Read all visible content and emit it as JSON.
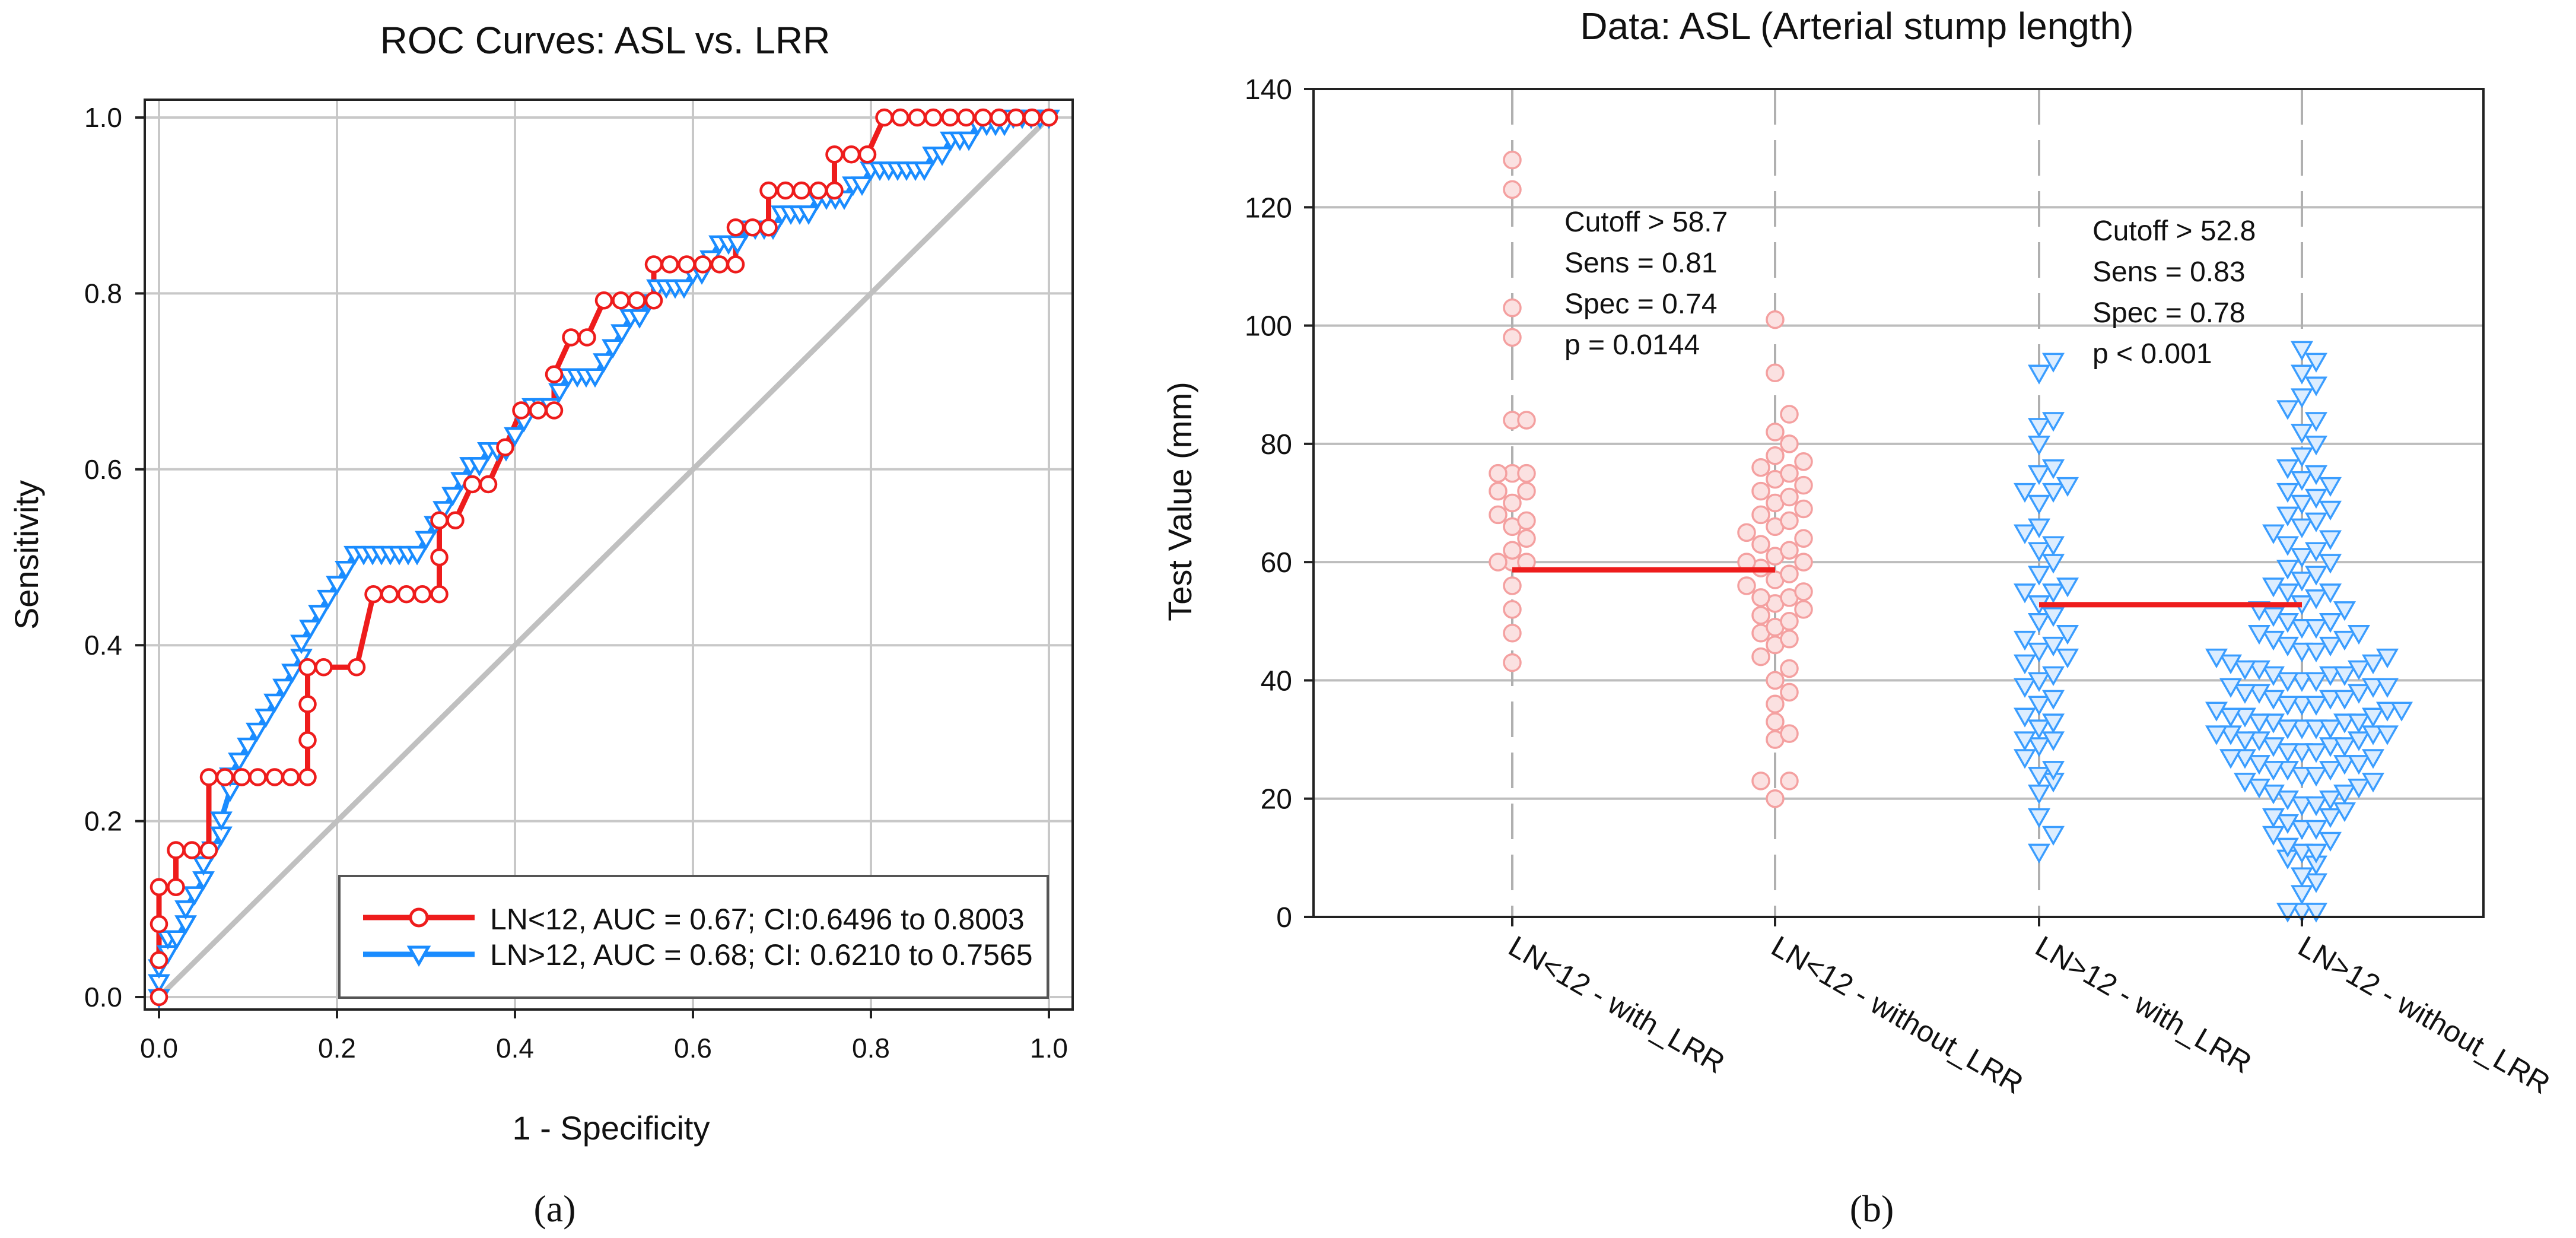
{
  "chart_data": [
    {
      "type": "line",
      "title": "ROC Curves: ASL vs. LRR",
      "xlabel": "1 - Specificity",
      "ylabel": "Sensitivity",
      "xlim": [
        0,
        1
      ],
      "ylim": [
        0,
        1
      ],
      "xticks": [
        "0.0",
        "0.2",
        "0.4",
        "0.6",
        "0.8",
        "1.0"
      ],
      "yticks": [
        "0.0",
        "0.2",
        "0.4",
        "0.6",
        "0.8",
        "1.0"
      ],
      "grid": true,
      "legend_position": "bottom-right",
      "series": [
        {
          "name": "LN<12, AUC = 0.67; CI:0.6496 to 0.8003",
          "color": "#ee1c1c",
          "marker": "circle",
          "points": [
            [
              0,
              0
            ],
            [
              0,
              0.042
            ],
            [
              0,
              0.083
            ],
            [
              0,
              0.125
            ],
            [
              0.019,
              0.125
            ],
            [
              0.019,
              0.167
            ],
            [
              0.037,
              0.167
            ],
            [
              0.056,
              0.167
            ],
            [
              0.056,
              0.25
            ],
            [
              0.074,
              0.25
            ],
            [
              0.093,
              0.25
            ],
            [
              0.111,
              0.25
            ],
            [
              0.13,
              0.25
            ],
            [
              0.148,
              0.25
            ],
            [
              0.167,
              0.25
            ],
            [
              0.167,
              0.292
            ],
            [
              0.167,
              0.333
            ],
            [
              0.167,
              0.375
            ],
            [
              0.185,
              0.375
            ],
            [
              0.222,
              0.375
            ],
            [
              0.241,
              0.458
            ],
            [
              0.259,
              0.458
            ],
            [
              0.278,
              0.458
            ],
            [
              0.296,
              0.458
            ],
            [
              0.315,
              0.458
            ],
            [
              0.315,
              0.5
            ],
            [
              0.315,
              0.542
            ],
            [
              0.333,
              0.542
            ],
            [
              0.352,
              0.583
            ],
            [
              0.37,
              0.583
            ],
            [
              0.389,
              0.625
            ],
            [
              0.407,
              0.667
            ],
            [
              0.426,
              0.667
            ],
            [
              0.444,
              0.667
            ],
            [
              0.444,
              0.708
            ],
            [
              0.463,
              0.75
            ],
            [
              0.481,
              0.75
            ],
            [
              0.5,
              0.792
            ],
            [
              0.519,
              0.792
            ],
            [
              0.537,
              0.792
            ],
            [
              0.556,
              0.792
            ],
            [
              0.556,
              0.833
            ],
            [
              0.574,
              0.833
            ],
            [
              0.593,
              0.833
            ],
            [
              0.611,
              0.833
            ],
            [
              0.63,
              0.833
            ],
            [
              0.648,
              0.833
            ],
            [
              0.648,
              0.875
            ],
            [
              0.667,
              0.875
            ],
            [
              0.685,
              0.875
            ],
            [
              0.685,
              0.917
            ],
            [
              0.704,
              0.917
            ],
            [
              0.722,
              0.917
            ],
            [
              0.741,
              0.917
            ],
            [
              0.759,
              0.917
            ],
            [
              0.759,
              0.958
            ],
            [
              0.778,
              0.958
            ],
            [
              0.796,
              0.958
            ],
            [
              0.815,
              1
            ],
            [
              0.833,
              1
            ],
            [
              0.852,
              1
            ],
            [
              0.87,
              1
            ],
            [
              0.889,
              1
            ],
            [
              0.907,
              1
            ],
            [
              0.926,
              1
            ],
            [
              0.944,
              1
            ],
            [
              0.963,
              1
            ],
            [
              0.981,
              1
            ],
            [
              1,
              1
            ]
          ]
        },
        {
          "name": "LN>12, AUC = 0.68; CI: 0.6210 to 0.7565",
          "color": "#1a8cff",
          "marker": "triangle-down",
          "points": [
            [
              0,
              0
            ],
            [
              0,
              0.017
            ],
            [
              0,
              0.034
            ],
            [
              0.01,
              0.05
            ],
            [
              0.01,
              0.067
            ],
            [
              0.02,
              0.067
            ],
            [
              0.03,
              0.084
            ],
            [
              0.03,
              0.101
            ],
            [
              0.04,
              0.117
            ],
            [
              0.05,
              0.134
            ],
            [
              0.05,
              0.151
            ],
            [
              0.06,
              0.168
            ],
            [
              0.07,
              0.185
            ],
            [
              0.07,
              0.202
            ],
            [
              0.08,
              0.235
            ],
            [
              0.08,
              0.252
            ],
            [
              0.09,
              0.269
            ],
            [
              0.1,
              0.286
            ],
            [
              0.11,
              0.303
            ],
            [
              0.12,
              0.319
            ],
            [
              0.13,
              0.336
            ],
            [
              0.14,
              0.353
            ],
            [
              0.15,
              0.37
            ],
            [
              0.16,
              0.387
            ],
            [
              0.16,
              0.403
            ],
            [
              0.17,
              0.42
            ],
            [
              0.18,
              0.437
            ],
            [
              0.19,
              0.454
            ],
            [
              0.2,
              0.47
            ],
            [
              0.21,
              0.487
            ],
            [
              0.22,
              0.504
            ],
            [
              0.23,
              0.504
            ],
            [
              0.24,
              0.504
            ],
            [
              0.25,
              0.504
            ],
            [
              0.26,
              0.504
            ],
            [
              0.27,
              0.504
            ],
            [
              0.28,
              0.504
            ],
            [
              0.29,
              0.504
            ],
            [
              0.3,
              0.521
            ],
            [
              0.31,
              0.538
            ],
            [
              0.32,
              0.555
            ],
            [
              0.33,
              0.571
            ],
            [
              0.34,
              0.588
            ],
            [
              0.35,
              0.605
            ],
            [
              0.36,
              0.605
            ],
            [
              0.37,
              0.622
            ],
            [
              0.38,
              0.622
            ],
            [
              0.39,
              0.622
            ],
            [
              0.4,
              0.639
            ],
            [
              0.41,
              0.655
            ],
            [
              0.42,
              0.672
            ],
            [
              0.43,
              0.672
            ],
            [
              0.44,
              0.672
            ],
            [
              0.45,
              0.689
            ],
            [
              0.46,
              0.706
            ],
            [
              0.47,
              0.706
            ],
            [
              0.48,
              0.706
            ],
            [
              0.49,
              0.706
            ],
            [
              0.5,
              0.723
            ],
            [
              0.51,
              0.739
            ],
            [
              0.52,
              0.756
            ],
            [
              0.53,
              0.773
            ],
            [
              0.54,
              0.773
            ],
            [
              0.55,
              0.79
            ],
            [
              0.56,
              0.807
            ],
            [
              0.57,
              0.807
            ],
            [
              0.58,
              0.807
            ],
            [
              0.59,
              0.807
            ],
            [
              0.6,
              0.823
            ],
            [
              0.61,
              0.823
            ],
            [
              0.62,
              0.84
            ],
            [
              0.63,
              0.857
            ],
            [
              0.64,
              0.857
            ],
            [
              0.65,
              0.857
            ],
            [
              0.66,
              0.874
            ],
            [
              0.67,
              0.874
            ],
            [
              0.68,
              0.874
            ],
            [
              0.69,
              0.874
            ],
            [
              0.7,
              0.891
            ],
            [
              0.71,
              0.891
            ],
            [
              0.72,
              0.891
            ],
            [
              0.73,
              0.891
            ],
            [
              0.74,
              0.908
            ],
            [
              0.75,
              0.908
            ],
            [
              0.76,
              0.908
            ],
            [
              0.77,
              0.908
            ],
            [
              0.78,
              0.924
            ],
            [
              0.79,
              0.924
            ],
            [
              0.8,
              0.941
            ],
            [
              0.81,
              0.941
            ],
            [
              0.82,
              0.941
            ],
            [
              0.83,
              0.941
            ],
            [
              0.84,
              0.941
            ],
            [
              0.85,
              0.941
            ],
            [
              0.86,
              0.941
            ],
            [
              0.87,
              0.958
            ],
            [
              0.88,
              0.958
            ],
            [
              0.89,
              0.975
            ],
            [
              0.9,
              0.975
            ],
            [
              0.91,
              0.975
            ],
            [
              0.92,
              0.992
            ],
            [
              0.93,
              0.992
            ],
            [
              0.94,
              0.992
            ],
            [
              0.95,
              0.992
            ],
            [
              0.96,
              1
            ],
            [
              0.97,
              1
            ],
            [
              0.98,
              1
            ],
            [
              0.99,
              1
            ],
            [
              1,
              1
            ]
          ]
        },
        {
          "name": "reference diagonal",
          "color": "#c0c0c0",
          "marker": "none",
          "points": [
            [
              0,
              0
            ],
            [
              1,
              1
            ]
          ]
        }
      ]
    },
    {
      "type": "scatter",
      "title": "Data: ASL (Arterial stump length)",
      "xlabel": "",
      "ylabel": "Test Value (mm)",
      "ylim": [
        0,
        140
      ],
      "yticks": [
        "0",
        "20",
        "40",
        "60",
        "80",
        "100",
        "120",
        "140"
      ],
      "grid": true,
      "categories": [
        "LN<12 - with_LRR",
        "LN<12 - without_LRR",
        "LN>12 - with_LRR",
        "LN>12 - without_LRR"
      ],
      "series": [
        {
          "name": "LN<12 - with_LRR",
          "color": "#f4a0a0",
          "marker": "circle",
          "values": [
            43,
            48,
            52,
            56,
            60,
            60,
            60,
            62,
            64,
            66,
            67,
            68,
            70,
            72,
            72,
            75,
            75,
            75,
            84,
            84,
            98,
            103,
            123,
            128
          ]
        },
        {
          "name": "LN<12 - without_LRR",
          "color": "#f4a0a0",
          "marker": "circle",
          "values": [
            20,
            23,
            23,
            30,
            31,
            33,
            36,
            38,
            40,
            42,
            44,
            46,
            47,
            48,
            49,
            50,
            51,
            52,
            53,
            54,
            54,
            55,
            56,
            57,
            58,
            59,
            60,
            60,
            61,
            62,
            63,
            64,
            65,
            66,
            67,
            68,
            69,
            70,
            71,
            72,
            73,
            74,
            75,
            76,
            77,
            78,
            80,
            82,
            85,
            92,
            101
          ]
        },
        {
          "name": "LN>12 - with_LRR",
          "color": "#3a9dff",
          "marker": "triangle-down",
          "values": [
            11,
            14,
            17,
            21,
            23,
            24,
            25,
            27,
            29,
            30,
            30,
            32,
            33,
            34,
            36,
            37,
            39,
            40,
            41,
            43,
            44,
            45,
            46,
            47,
            48,
            50,
            51,
            53,
            55,
            55,
            56,
            58,
            60,
            62,
            63,
            65,
            66,
            70,
            72,
            72,
            73,
            75,
            76,
            80,
            83,
            84,
            92,
            94
          ]
        },
        {
          "name": "LN>12 - without_LRR",
          "color": "#3a9dff",
          "marker": "triangle-down",
          "values": [
            1,
            1,
            1,
            4,
            6,
            7,
            9,
            10,
            11,
            11,
            12,
            13,
            14,
            15,
            15,
            16,
            17,
            17,
            18,
            19,
            19,
            20,
            20,
            21,
            21,
            22,
            22,
            23,
            23,
            24,
            24,
            25,
            25,
            25,
            26,
            26,
            26,
            27,
            27,
            27,
            28,
            28,
            28,
            29,
            29,
            29,
            30,
            30,
            30,
            31,
            31,
            31,
            31,
            32,
            32,
            32,
            32,
            33,
            33,
            33,
            33,
            34,
            34,
            34,
            35,
            35,
            35,
            36,
            36,
            36,
            37,
            37,
            37,
            38,
            38,
            38,
            39,
            39,
            39,
            40,
            40,
            40,
            41,
            41,
            41,
            42,
            42,
            42,
            43,
            43,
            44,
            44,
            45,
            45,
            46,
            46,
            47,
            47,
            48,
            48,
            49,
            49,
            50,
            50,
            51,
            52,
            52,
            53,
            54,
            55,
            55,
            56,
            57,
            58,
            59,
            60,
            61,
            62,
            63,
            64,
            65,
            66,
            67,
            68,
            69,
            70,
            71,
            72,
            73,
            74,
            75,
            76,
            78,
            80,
            82,
            84,
            86,
            88,
            90,
            92,
            94,
            96
          ]
        }
      ],
      "cutoffs": [
        {
          "groups": "LN<12",
          "value": 58.7,
          "color": "#ee1c1c",
          "lines": [
            "Cutoff > 58.7",
            "Sens = 0.81",
            "Spec = 0.74",
            "p = 0.0144"
          ]
        },
        {
          "groups": "LN>12",
          "value": 52.8,
          "color": "#ee1c1c",
          "lines": [
            "Cutoff > 52.8",
            "Sens = 0.83",
            "Spec = 0.78",
            "p < 0.001"
          ]
        }
      ]
    }
  ],
  "panel_labels": [
    "(a)",
    "(b)"
  ]
}
